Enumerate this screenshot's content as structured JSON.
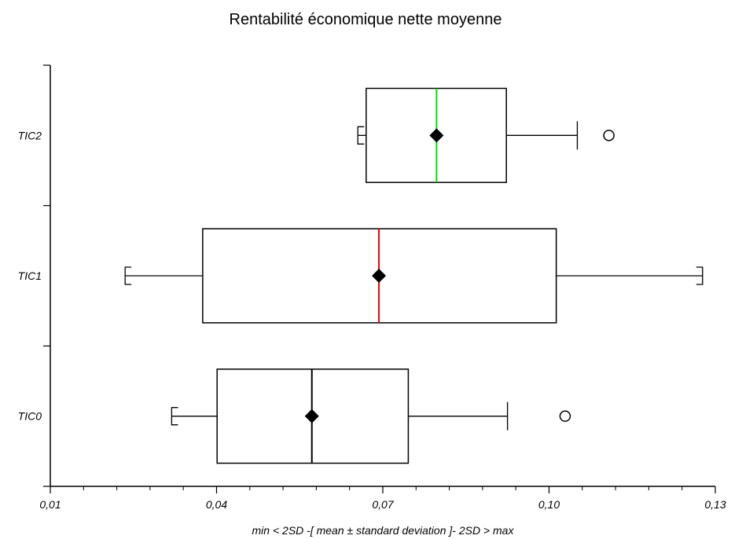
{
  "chart_data": {
    "type": "boxplot",
    "title": "Rentabilité économique nette moyenne",
    "xlabel": "min < 2SD -[ mean ± standard deviation ]- 2SD > max",
    "ylabel": "",
    "xlim": [
      0.01,
      0.13
    ],
    "x_ticks": [
      "0,01",
      "0,04",
      "0,07",
      "0,10",
      "0,13"
    ],
    "categories": [
      "TIC2",
      "TIC1",
      "TIC0"
    ],
    "series": [
      {
        "category": "TIC2",
        "min": 0.0655,
        "q1": 0.067,
        "median": 0.0797,
        "mean": 0.0797,
        "q3": 0.0923,
        "max": 0.1051,
        "outliers": [
          0.1108
        ],
        "median_color": "#00dd00"
      },
      {
        "category": "TIC1",
        "min": 0.0235,
        "q1": 0.0375,
        "median": 0.0693,
        "mean": 0.0693,
        "q3": 0.1013,
        "max": 0.1277,
        "outliers": [],
        "median_color": "#ee0000"
      },
      {
        "category": "TIC0",
        "min": 0.0319,
        "q1": 0.0401,
        "median": 0.0572,
        "mean": 0.0572,
        "q3": 0.0746,
        "max": 0.0925,
        "outliers": [
          0.1029
        ],
        "median_color": "#000000"
      }
    ]
  }
}
